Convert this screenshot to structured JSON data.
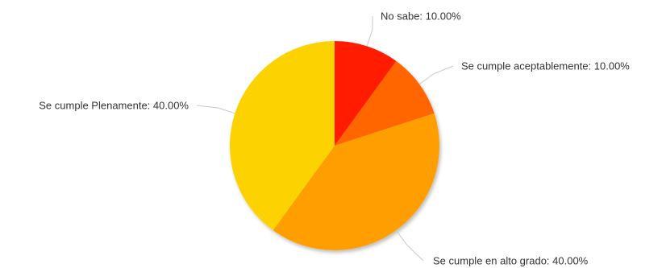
{
  "chart_data": {
    "type": "pie",
    "title": "",
    "start_angle_deg": 0,
    "direction": "clockwise",
    "slices": [
      {
        "label": "No sabe",
        "value": 10.0,
        "display": "No sabe: 10.00%",
        "color": "#ff1a00"
      },
      {
        "label": "Se cumple aceptablemente",
        "value": 10.0,
        "display": "Se cumple aceptablemente: 10.00%",
        "color": "#ff6600"
      },
      {
        "label": "Se cumple en alto grado",
        "value": 40.0,
        "display": "Se cumple en alto grado: 40.00%",
        "color": "#ff9e01"
      },
      {
        "label": "Se cumple Plenamente",
        "value": 40.0,
        "display": "Se cumple Plenamente: 40.00%",
        "color": "#fcd202"
      }
    ]
  }
}
